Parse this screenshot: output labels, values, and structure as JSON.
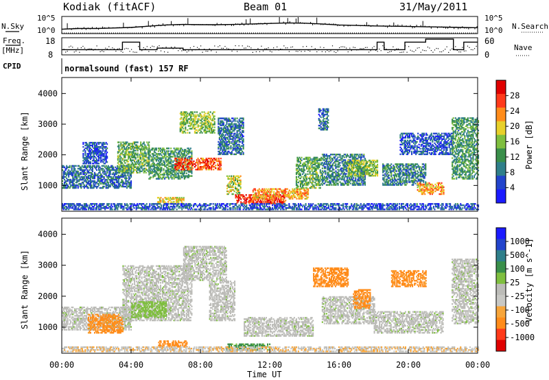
{
  "header": {
    "station": "Kodiak (fitACF)",
    "beam": "Beam 01",
    "date": "31/May/2011"
  },
  "left_labels": {
    "nsky": "N.Sky",
    "freq_line1": "Freq.",
    "freq_line2": "[MHz]",
    "cpid": "CPID"
  },
  "right_labels": {
    "nsearch": "N.Search",
    "nave": "Nave"
  },
  "small_axes": {
    "noise_left_top": "10^5",
    "noise_left_bottom": "10^0",
    "noise_right_top": "10^5",
    "noise_right_bottom": "10^0",
    "freq_top": "18",
    "freq_bottom": "8",
    "nave_top": "60",
    "nave_bottom": "0"
  },
  "cpid_text": "normalsound (fast) 157 RF",
  "colors": {
    "power": [
      "#1b1bff",
      "#2244cc",
      "#2f7f8a",
      "#3a8f4a",
      "#7fbf3f",
      "#e8d02a",
      "#ff8c1a",
      "#ff3a1a",
      "#e00000"
    ],
    "velocity": [
      "#e00000",
      "#ff3a1a",
      "#ff8c1a",
      "#f7a53a",
      "#c8c8c4",
      "#bcbcb8",
      "#7fbf3f",
      "#3a8f4a",
      "#2f7f8a",
      "#2244cc",
      "#1b1bff"
    ]
  },
  "chart_data": [
    {
      "type": "heatmap",
      "panel": "power",
      "ylabel": "Slant Range [km]",
      "ylim": [
        180,
        4500
      ],
      "yticks": [
        "1000",
        "2000",
        "3000",
        "4000"
      ],
      "colorbar_label": "Power [dB]",
      "colorbar_ticks": [
        "4",
        "8",
        "12",
        "16",
        "20",
        "24",
        "28"
      ],
      "colorbar_range": [
        0,
        32
      ],
      "regions": [
        {
          "t": [
            0.0,
            4.0
          ],
          "r": [
            900,
            1650
          ],
          "v": 8
        },
        {
          "t": [
            1.2,
            2.6
          ],
          "r": [
            1700,
            2400
          ],
          "v": 6
        },
        {
          "t": [
            3.2,
            5.0
          ],
          "r": [
            1400,
            2400
          ],
          "v": 14
        },
        {
          "t": [
            5.0,
            7.5
          ],
          "r": [
            1200,
            2200
          ],
          "v": 12
        },
        {
          "t": [
            6.5,
            9.2
          ],
          "r": [
            1500,
            1900
          ],
          "v": 26
        },
        {
          "t": [
            6.8,
            8.8
          ],
          "r": [
            2700,
            3400
          ],
          "v": 16
        },
        {
          "t": [
            9.0,
            10.5
          ],
          "r": [
            2000,
            3200
          ],
          "v": 8
        },
        {
          "t": [
            9.5,
            10.3
          ],
          "r": [
            700,
            1300
          ],
          "v": 18
        },
        {
          "t": [
            10.0,
            13.0
          ],
          "r": [
            400,
            700
          ],
          "v": 28
        },
        {
          "t": [
            11.0,
            14.2
          ],
          "r": [
            550,
            900
          ],
          "v": 22
        },
        {
          "t": [
            13.5,
            15.0
          ],
          "r": [
            900,
            1900
          ],
          "v": 14
        },
        {
          "t": [
            15.0,
            17.5
          ],
          "r": [
            1000,
            2000
          ],
          "v": 10
        },
        {
          "t": [
            16.5,
            18.2
          ],
          "r": [
            1300,
            1800
          ],
          "v": 16
        },
        {
          "t": [
            18.5,
            21.0
          ],
          "r": [
            1000,
            1700
          ],
          "v": 10
        },
        {
          "t": [
            19.5,
            22.5
          ],
          "r": [
            2000,
            2700
          ],
          "v": 6
        },
        {
          "t": [
            20.5,
            22.0
          ],
          "r": [
            700,
            1100
          ],
          "v": 22
        },
        {
          "t": [
            22.5,
            24.0
          ],
          "r": [
            1200,
            3200
          ],
          "v": 12
        },
        {
          "t": [
            14.8,
            15.4
          ],
          "r": [
            2800,
            3500
          ],
          "v": 8
        },
        {
          "t": [
            5.5,
            7.0
          ],
          "r": [
            400,
            600
          ],
          "v": 20
        },
        {
          "t": [
            0.0,
            24.0
          ],
          "r": [
            200,
            400
          ],
          "v": 6
        }
      ]
    },
    {
      "type": "heatmap",
      "panel": "velocity",
      "ylabel": "Slant Range [km]",
      "ylim": [
        180,
        4500
      ],
      "yticks": [
        "1000",
        "2000",
        "3000",
        "4000"
      ],
      "colorbar_label": "Velocity [m s^-1]",
      "colorbar_ticks": [
        "1000",
        "500",
        "100",
        "25",
        "-25",
        "-100",
        "-500",
        "-1000"
      ],
      "regions": [
        {
          "t": [
            0.0,
            4.0
          ],
          "r": [
            900,
            1650
          ],
          "v": 0
        },
        {
          "t": [
            1.5,
            3.5
          ],
          "r": [
            800,
            1400
          ],
          "v": -120
        },
        {
          "t": [
            3.5,
            7.5
          ],
          "r": [
            1200,
            3000
          ],
          "v": 0
        },
        {
          "t": [
            4.0,
            6.0
          ],
          "r": [
            1300,
            1800
          ],
          "v": 60
        },
        {
          "t": [
            7.0,
            9.5
          ],
          "r": [
            2500,
            3600
          ],
          "v": 0
        },
        {
          "t": [
            8.5,
            10.0
          ],
          "r": [
            1200,
            2500
          ],
          "v": 0
        },
        {
          "t": [
            5.5,
            7.2
          ],
          "r": [
            350,
            550
          ],
          "v": -180
        },
        {
          "t": [
            9.5,
            12.0
          ],
          "r": [
            250,
            450
          ],
          "v": 120
        },
        {
          "t": [
            10.5,
            14.5
          ],
          "r": [
            700,
            1300
          ],
          "v": 0
        },
        {
          "t": [
            14.5,
            16.5
          ],
          "r": [
            2300,
            2900
          ],
          "v": -150
        },
        {
          "t": [
            15.0,
            18.0
          ],
          "r": [
            1100,
            2000
          ],
          "v": 0
        },
        {
          "t": [
            16.8,
            17.8
          ],
          "r": [
            1600,
            2200
          ],
          "v": -200
        },
        {
          "t": [
            18.0,
            22.0
          ],
          "r": [
            800,
            1500
          ],
          "v": 0
        },
        {
          "t": [
            19.0,
            21.0
          ],
          "r": [
            2300,
            2800
          ],
          "v": -120
        },
        {
          "t": [
            22.5,
            24.0
          ],
          "r": [
            1100,
            3200
          ],
          "v": 0
        },
        {
          "t": [
            0.0,
            24.0
          ],
          "r": [
            200,
            350
          ],
          "v": -40
        }
      ]
    },
    {
      "type": "line",
      "panel": "noise",
      "series": [
        {
          "x": [
            0,
            1,
            2,
            3,
            4,
            5,
            6,
            7,
            8,
            9,
            10,
            11,
            12,
            13,
            14,
            15,
            16,
            17,
            18,
            19,
            20,
            21,
            22,
            23,
            24
          ],
          "y": [
            0.2,
            0.25,
            0.25,
            0.28,
            0.32,
            0.4,
            0.48,
            0.52,
            0.5,
            0.5,
            0.52,
            0.55,
            0.58,
            0.62,
            0.6,
            0.55,
            0.48,
            0.45,
            0.42,
            0.4,
            0.38,
            0.36,
            0.34,
            0.32,
            0.3
          ]
        }
      ],
      "ylim": [
        0,
        1
      ]
    },
    {
      "type": "line",
      "panel": "frequency",
      "series": [
        {
          "x": [
            0,
            0.5,
            3.5,
            3.5,
            4.5,
            4.5,
            5.5,
            5.5,
            7.0,
            7.0,
            18.2,
            18.2,
            18.6,
            18.6,
            19.8,
            19.8,
            21.0,
            21.0,
            22.6,
            22.6,
            23.2,
            23.2,
            24.0
          ],
          "y": [
            11,
            11,
            11,
            16,
            16,
            11,
            11,
            12,
            12,
            11,
            11,
            16,
            16,
            11,
            11,
            16,
            16,
            18,
            18,
            11,
            11,
            16,
            16
          ]
        }
      ],
      "ylim": [
        8,
        18
      ]
    }
  ],
  "xaxis": {
    "ticks": [
      "00:00",
      "04:00",
      "08:00",
      "12:00",
      "16:00",
      "20:00",
      "00:00"
    ],
    "xlabel": "Time UT",
    "xlim_hours": [
      0,
      24
    ]
  }
}
